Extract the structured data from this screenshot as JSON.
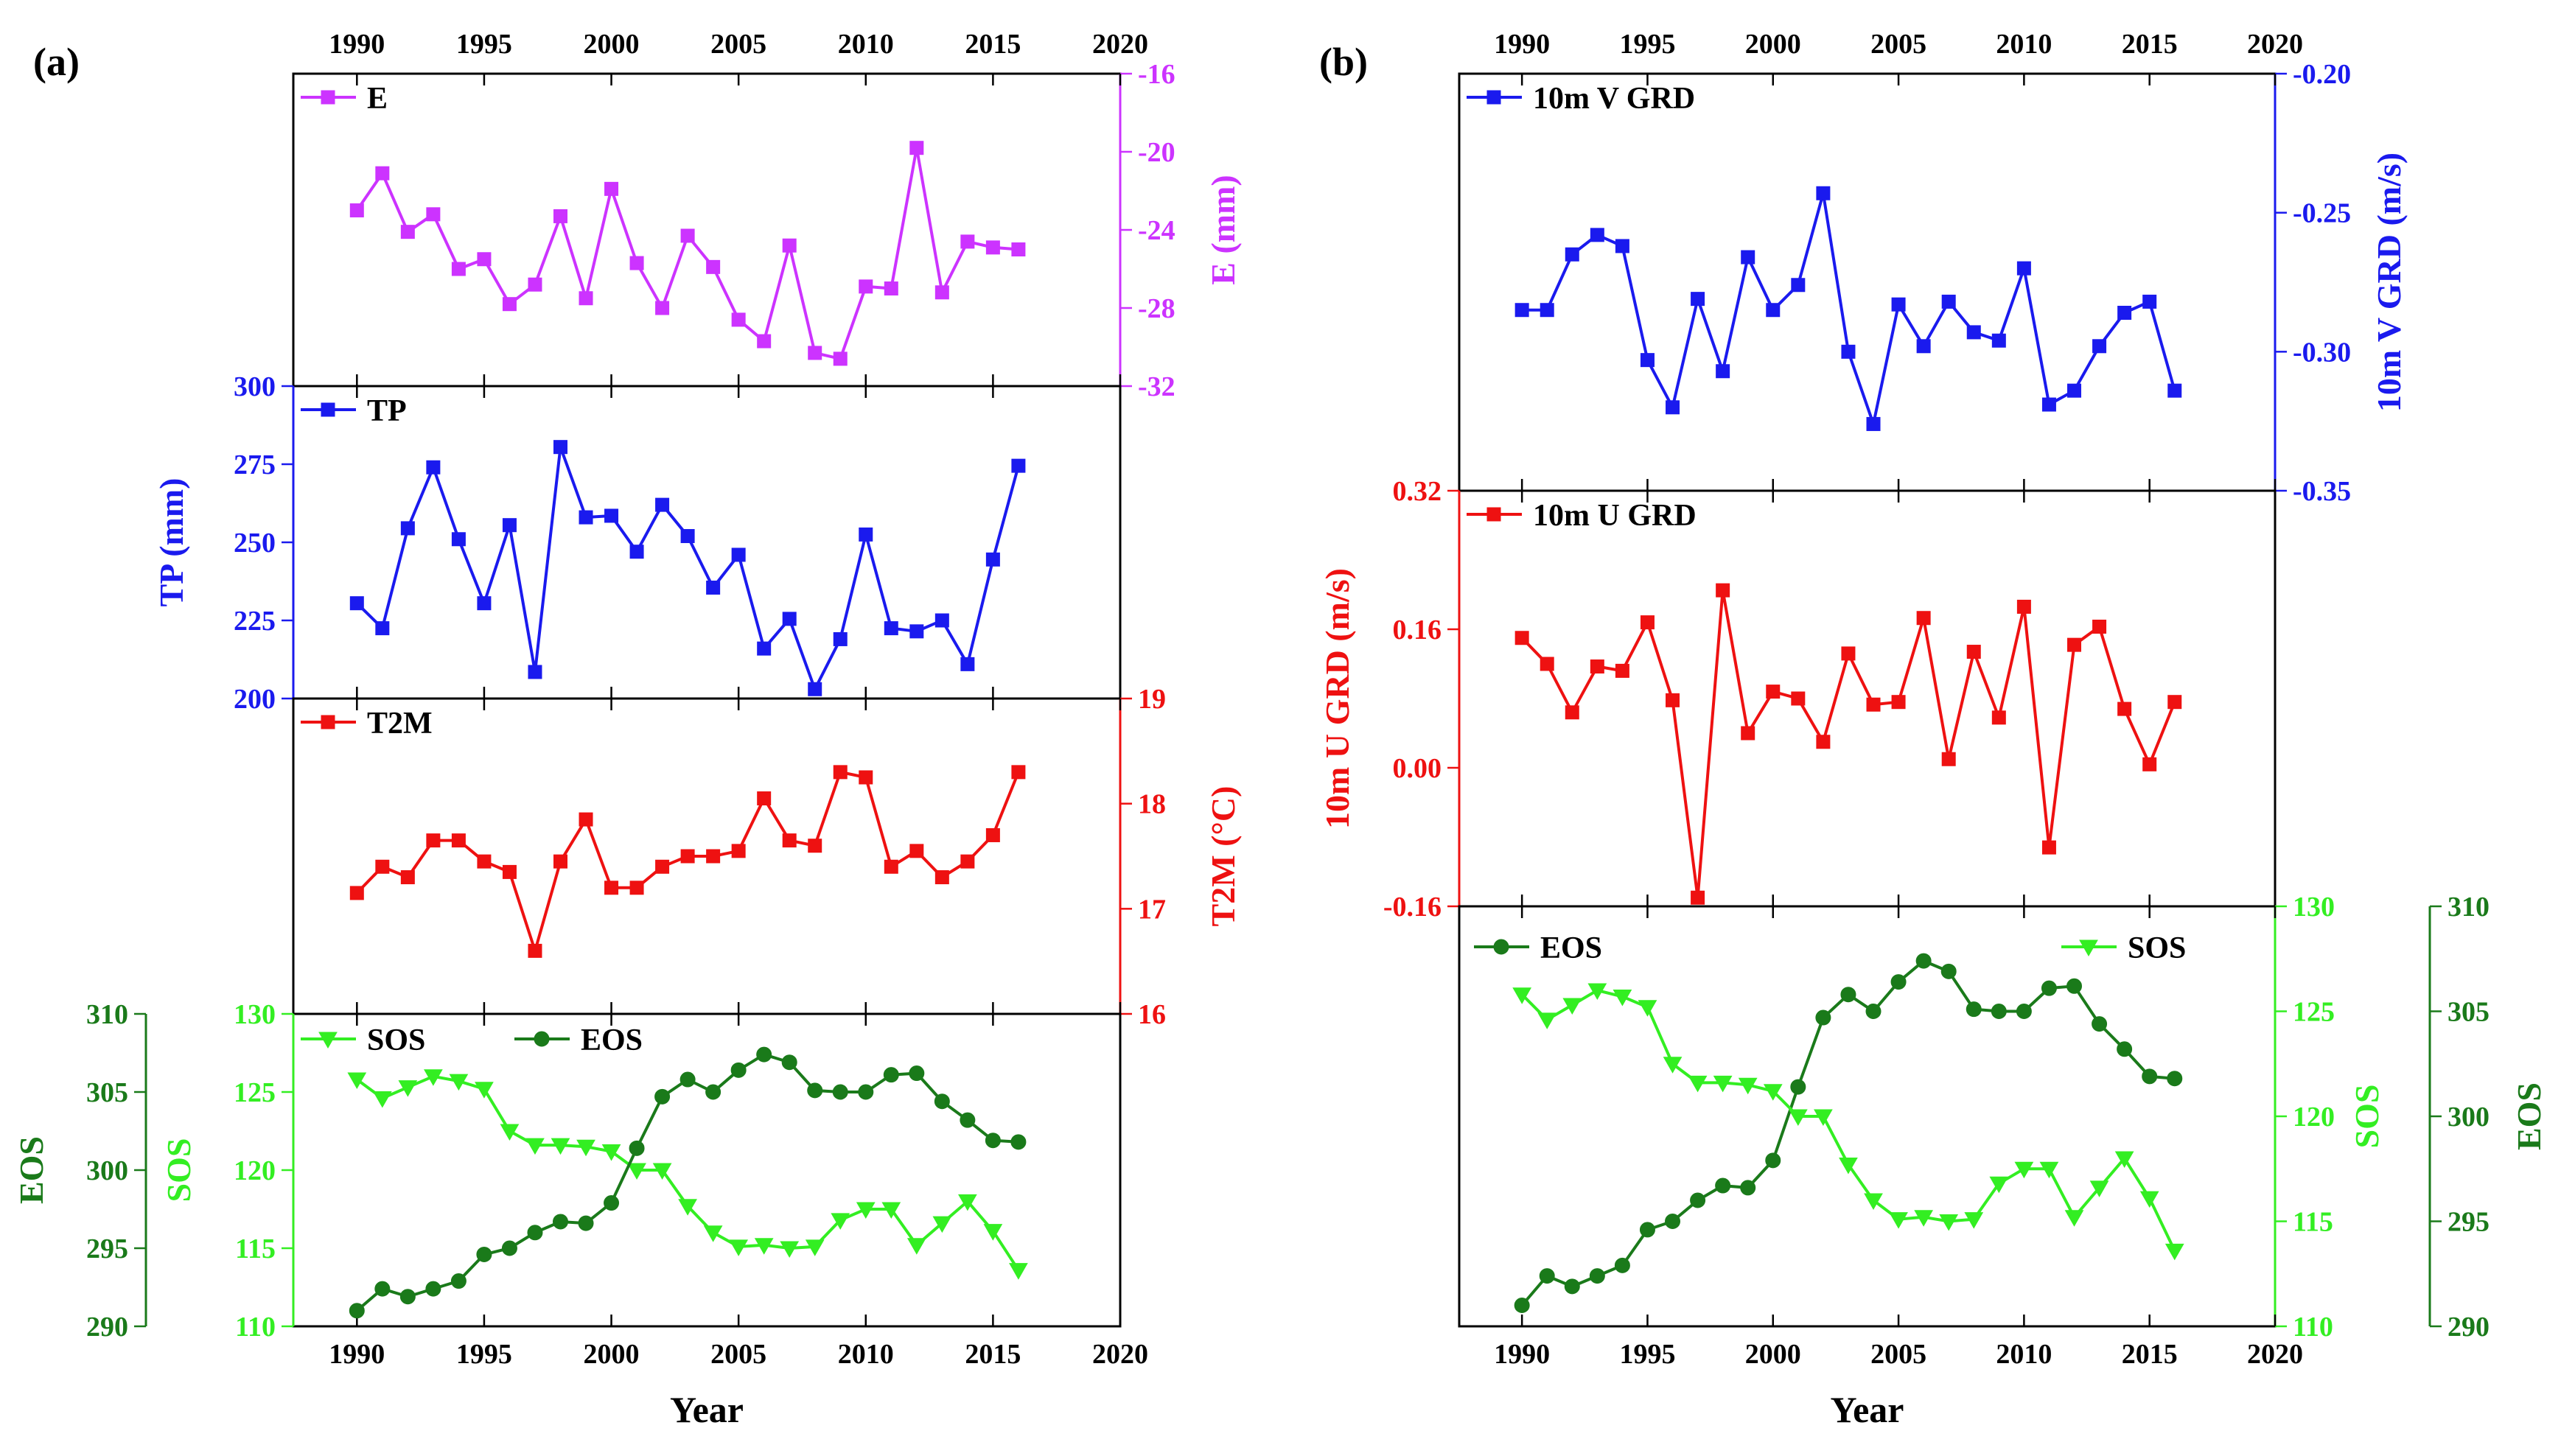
{
  "panel_a_label": "(a)",
  "panel_b_label": "(b)",
  "chart_data": [
    {
      "id": "a_E",
      "panel": "a",
      "type": "line",
      "series": [
        {
          "name": "E",
          "color": "#cc33ff",
          "marker": "square",
          "x": [
            1990,
            1991,
            1992,
            1993,
            1994,
            1995,
            1996,
            1997,
            1998,
            1999,
            2000,
            2001,
            2002,
            2003,
            2004,
            2005,
            2006,
            2007,
            2008,
            2009,
            2010,
            2011,
            2012,
            2013,
            2014,
            2015,
            2016
          ],
          "values": [
            -23.0,
            -21.1,
            -24.1,
            -23.2,
            -26.0,
            -25.5,
            -27.8,
            -26.8,
            -23.3,
            -27.5,
            -21.9,
            -25.7,
            -28.0,
            -24.3,
            -25.9,
            -28.6,
            -29.7,
            -24.8,
            -30.3,
            -30.6,
            -26.9,
            -27.0,
            -19.8,
            -27.2,
            -24.6,
            -24.9,
            -25.0
          ]
        }
      ],
      "x_range": [
        1987.5,
        2020
      ],
      "ylim": [
        -32,
        -16
      ],
      "y_ticks": [
        -32,
        -28,
        -24,
        -20,
        -16
      ],
      "y_side": "right",
      "y_color": "#cc33ff",
      "ylabel": "E (mm)",
      "legend": "E",
      "top_axis_labels": true
    },
    {
      "id": "a_TP",
      "panel": "a",
      "type": "line",
      "series": [
        {
          "name": "TP",
          "color": "#1a1aee",
          "marker": "square",
          "x": [
            1990,
            1991,
            1992,
            1993,
            1994,
            1995,
            1996,
            1997,
            1998,
            1999,
            2000,
            2001,
            2002,
            2003,
            2004,
            2005,
            2006,
            2007,
            2008,
            2009,
            2010,
            2011,
            2012,
            2013,
            2014,
            2015,
            2016
          ],
          "values": [
            230.5,
            222.5,
            254.5,
            274,
            251,
            230.5,
            255.5,
            208.5,
            280.5,
            258,
            258.5,
            247,
            262,
            252,
            235.5,
            246,
            216,
            225.5,
            203,
            219,
            252.5,
            222.5,
            221.5,
            225,
            211,
            244.5,
            274.5
          ]
        }
      ],
      "x_range": [
        1987.5,
        2020
      ],
      "ylim": [
        200,
        300
      ],
      "y_ticks": [
        200,
        225,
        250,
        275,
        300
      ],
      "y_side": "left",
      "y_color": "#1a1aee",
      "ylabel": "TP (mm)",
      "legend": "TP"
    },
    {
      "id": "a_T2M",
      "panel": "a",
      "type": "line",
      "series": [
        {
          "name": "T2M",
          "color": "#ee1111",
          "marker": "square",
          "x": [
            1990,
            1991,
            1992,
            1993,
            1994,
            1995,
            1996,
            1997,
            1998,
            1999,
            2000,
            2001,
            2002,
            2003,
            2004,
            2005,
            2006,
            2007,
            2008,
            2009,
            2010,
            2011,
            2012,
            2013,
            2014,
            2015,
            2016
          ],
          "values": [
            17.15,
            17.4,
            17.3,
            17.65,
            17.65,
            17.45,
            17.35,
            16.6,
            17.45,
            17.85,
            17.2,
            17.2,
            17.4,
            17.5,
            17.5,
            17.55,
            18.05,
            17.65,
            17.6,
            18.3,
            18.25,
            17.4,
            17.55,
            17.3,
            17.45,
            17.7,
            18.3
          ]
        }
      ],
      "x_range": [
        1987.5,
        2020
      ],
      "ylim": [
        16,
        19
      ],
      "y_ticks": [
        16,
        17,
        18,
        19
      ],
      "y_side": "right",
      "y_color": "#ee1111",
      "ylabel": "T2M (°C)",
      "legend": "T2M"
    },
    {
      "id": "a_phen",
      "panel": "a",
      "type": "line",
      "x_range": [
        1987.5,
        2020
      ],
      "x_ticks": [
        1990,
        1995,
        2000,
        2005,
        2010,
        2015,
        2020
      ],
      "xlabel": "Year",
      "series": [
        {
          "name": "SOS",
          "color": "#33ee22",
          "marker": "triangle-down",
          "axis": "SOS",
          "x": [
            1990,
            1991,
            1992,
            1993,
            1994,
            1995,
            1996,
            1997,
            1998,
            1999,
            2000,
            2001,
            2002,
            2003,
            2004,
            2005,
            2006,
            2007,
            2008,
            2009,
            2010,
            2011,
            2012,
            2013,
            2014,
            2015,
            2016
          ],
          "values": [
            125.8,
            124.6,
            125.3,
            126.0,
            125.7,
            125.2,
            122.5,
            121.6,
            121.6,
            121.5,
            121.2,
            120.0,
            120.0,
            117.7,
            116.0,
            115.1,
            115.2,
            115.0,
            115.1,
            116.8,
            117.5,
            117.5,
            115.2,
            116.6,
            118.0,
            116.1,
            113.6
          ]
        },
        {
          "name": "EOS",
          "color": "#1a7a1a",
          "marker": "circle",
          "axis": "EOS",
          "x": [
            1990,
            1991,
            1992,
            1993,
            1994,
            1995,
            1996,
            1997,
            1998,
            1999,
            2000,
            2001,
            2002,
            2003,
            2004,
            2005,
            2006,
            2007,
            2008,
            2009,
            2010,
            2011,
            2012,
            2013,
            2014,
            2015,
            2016
          ],
          "values": [
            291.0,
            292.4,
            291.9,
            292.4,
            292.9,
            294.6,
            295.0,
            296.0,
            296.7,
            296.6,
            297.9,
            301.4,
            304.7,
            305.8,
            305.0,
            306.4,
            307.4,
            306.9,
            305.1,
            305.0,
            305.0,
            306.1,
            306.2,
            304.4,
            303.2,
            301.9,
            301.8
          ]
        }
      ],
      "axes": {
        "SOS": {
          "label": "SOS",
          "ylim": [
            110,
            130
          ],
          "ticks": [
            110,
            115,
            120,
            125,
            130
          ],
          "color": "#33ee22"
        },
        "EOS": {
          "label": "EOS",
          "ylim": [
            290,
            310
          ],
          "ticks": [
            290,
            295,
            300,
            305,
            310
          ],
          "color": "#1a7a1a"
        }
      },
      "legend": [
        "SOS",
        "EOS"
      ]
    },
    {
      "id": "b_V",
      "panel": "b",
      "type": "line",
      "series": [
        {
          "name": "10m V GRD",
          "color": "#1a1aee",
          "marker": "square",
          "x": [
            1990,
            1991,
            1992,
            1993,
            1994,
            1995,
            1996,
            1997,
            1998,
            1999,
            2000,
            2001,
            2002,
            2003,
            2004,
            2005,
            2006,
            2007,
            2008,
            2009,
            2010,
            2011,
            2012,
            2013,
            2014,
            2015,
            2016
          ],
          "values": [
            -0.285,
            -0.285,
            -0.265,
            -0.258,
            -0.262,
            -0.303,
            -0.32,
            -0.281,
            -0.307,
            -0.266,
            -0.285,
            -0.276,
            -0.243,
            -0.3,
            -0.326,
            -0.283,
            -0.298,
            -0.282,
            -0.293,
            -0.296,
            -0.27,
            -0.319,
            -0.314,
            -0.298,
            -0.286,
            -0.282,
            -0.314
          ]
        }
      ],
      "x_range": [
        1987.5,
        2020
      ],
      "ylim": [
        -0.35,
        -0.2
      ],
      "y_ticks": [
        -0.35,
        -0.3,
        -0.25,
        -0.2
      ],
      "y_side": "right",
      "y_color": "#1a1aee",
      "ylabel": "10m V GRD (m/s)",
      "legend": "10m V GRD",
      "top_axis_labels": true
    },
    {
      "id": "b_U",
      "panel": "b",
      "type": "line",
      "series": [
        {
          "name": "10m U GRD",
          "color": "#ee1111",
          "marker": "square",
          "x": [
            1990,
            1991,
            1992,
            1993,
            1994,
            1995,
            1996,
            1997,
            1998,
            1999,
            2000,
            2001,
            2002,
            2003,
            2004,
            2005,
            2006,
            2007,
            2008,
            2009,
            2010,
            2011,
            2012,
            2013,
            2014,
            2015,
            2016
          ],
          "values": [
            0.15,
            0.12,
            0.064,
            0.117,
            0.112,
            0.168,
            0.078,
            -0.15,
            0.205,
            0.04,
            0.088,
            0.08,
            0.03,
            0.132,
            0.073,
            0.076,
            0.173,
            0.01,
            0.134,
            0.058,
            0.186,
            -0.092,
            0.142,
            0.163,
            0.068,
            0.004,
            0.076
          ]
        }
      ],
      "x_range": [
        1987.5,
        2020
      ],
      "ylim": [
        -0.16,
        0.32
      ],
      "y_ticks": [
        -0.16,
        0.0,
        0.16,
        0.32
      ],
      "y_side": "left",
      "y_color": "#ee1111",
      "ylabel": "10m U GRD (m/s)",
      "legend": "10m U GRD"
    },
    {
      "id": "b_phen",
      "panel": "b",
      "type": "line",
      "x_range": [
        1987.5,
        2020
      ],
      "x_ticks": [
        1990,
        1995,
        2000,
        2005,
        2010,
        2015,
        2020
      ],
      "xlabel": "Year",
      "series": [
        {
          "name": "EOS",
          "color": "#1a7a1a",
          "marker": "circle",
          "axis": "EOS",
          "x": [
            1990,
            1991,
            1992,
            1993,
            1994,
            1995,
            1996,
            1997,
            1998,
            1999,
            2000,
            2001,
            2002,
            2003,
            2004,
            2005,
            2006,
            2007,
            2008,
            2009,
            2010,
            2011,
            2012,
            2013,
            2014,
            2015,
            2016
          ],
          "values": [
            291.0,
            292.4,
            291.9,
            292.4,
            292.9,
            294.6,
            295.0,
            296.0,
            296.7,
            296.6,
            297.9,
            301.4,
            304.7,
            305.8,
            305.0,
            306.4,
            307.4,
            306.9,
            305.1,
            305.0,
            305.0,
            306.1,
            306.2,
            304.4,
            303.2,
            301.9,
            301.8
          ]
        },
        {
          "name": "SOS",
          "color": "#33ee22",
          "marker": "triangle-down",
          "axis": "SOS",
          "x": [
            1990,
            1991,
            1992,
            1993,
            1994,
            1995,
            1996,
            1997,
            1998,
            1999,
            2000,
            2001,
            2002,
            2003,
            2004,
            2005,
            2006,
            2007,
            2008,
            2009,
            2010,
            2011,
            2012,
            2013,
            2014,
            2015,
            2016
          ],
          "values": [
            125.8,
            124.6,
            125.3,
            126.0,
            125.7,
            125.2,
            122.5,
            121.6,
            121.6,
            121.5,
            121.2,
            120.0,
            120.0,
            117.7,
            116.0,
            115.1,
            115.2,
            115.0,
            115.1,
            116.8,
            117.5,
            117.5,
            115.2,
            116.6,
            118.0,
            116.1,
            113.6
          ]
        }
      ],
      "axes": {
        "SOS": {
          "label": "SOS",
          "ylim": [
            110,
            130
          ],
          "ticks": [
            110,
            115,
            120,
            125,
            130
          ],
          "color": "#33ee22"
        },
        "EOS": {
          "label": "EOS",
          "ylim": [
            290,
            310
          ],
          "ticks": [
            290,
            295,
            300,
            305,
            310
          ],
          "color": "#1a7a1a"
        }
      },
      "legend": [
        "EOS",
        "SOS"
      ]
    }
  ]
}
